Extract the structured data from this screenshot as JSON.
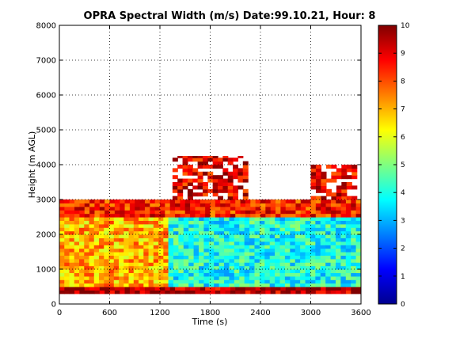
{
  "chart_data": {
    "type": "heatmap",
    "title": "OPRA Spectral Width (m/s)  Date:99.10.21, Hour: 8",
    "xlabel": "Time (s)",
    "ylabel": "Height (m AGL)",
    "xlim": [
      0,
      3600
    ],
    "ylim": [
      0,
      8000
    ],
    "xticks": [
      "0",
      "600",
      "1200",
      "1800",
      "2400",
      "3000",
      "3600"
    ],
    "yticks": [
      "0",
      "1000",
      "2000",
      "3000",
      "4000",
      "5000",
      "6000",
      "7000",
      "8000"
    ],
    "grid": true,
    "colorbar": {
      "range": [
        0,
        10
      ],
      "ticks": [
        "0",
        "1",
        "2",
        "3",
        "4",
        "5",
        "6",
        "7",
        "8",
        "9",
        "10"
      ],
      "colormap": "jet"
    },
    "regions": [
      {
        "name": "lowest band (300-500 m)",
        "x": [
          0,
          3600
        ],
        "y": [
          300,
          500
        ],
        "value": 9.5
      },
      {
        "name": "mixed layer before 1300 s",
        "x": [
          0,
          1300
        ],
        "y": [
          500,
          2500
        ],
        "value": 7
      },
      {
        "name": "mixed layer after 1300 s",
        "x": [
          1300,
          3600
        ],
        "y": [
          500,
          2500
        ],
        "value": 4
      },
      {
        "name": "top of layer",
        "x": [
          0,
          3600
        ],
        "y": [
          2500,
          3000
        ],
        "value": 8.5
      },
      {
        "name": "plume near 1800 s",
        "x": [
          1350,
          2250
        ],
        "y": [
          3000,
          4250
        ],
        "value": 9
      },
      {
        "name": "plume near 3200 s",
        "x": [
          3000,
          3550
        ],
        "y": [
          3000,
          4000
        ],
        "value": 9
      }
    ]
  }
}
